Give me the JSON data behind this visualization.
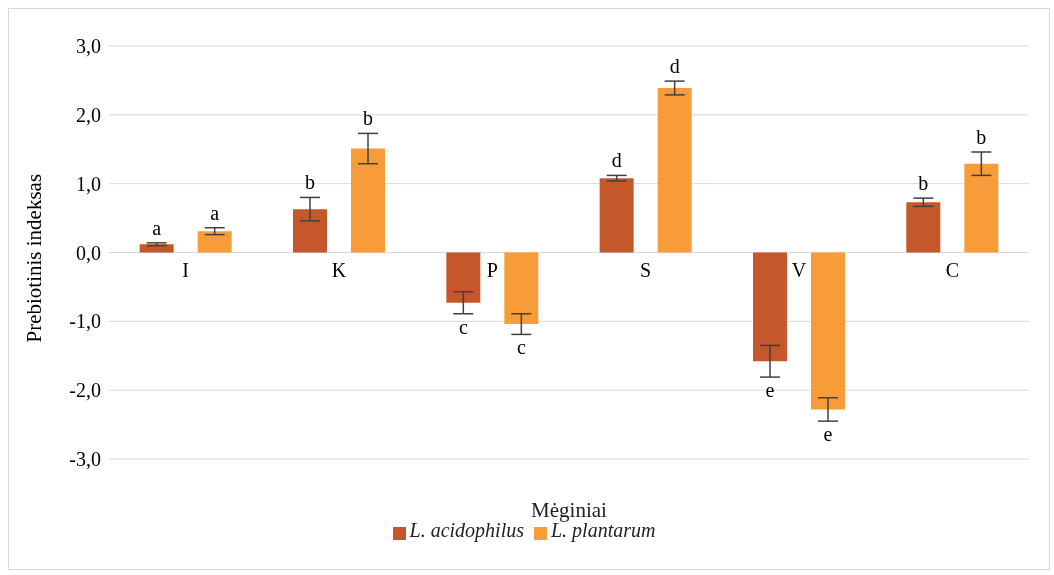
{
  "chart_data": {
    "type": "bar",
    "xlabel": "Mėginiai",
    "ylabel": "Prebiotinis indeksas",
    "categories": [
      "I",
      "K",
      "P",
      "S",
      "V",
      "C"
    ],
    "series": [
      {
        "name": "L. acidophilus",
        "color": "#c5582a",
        "values": [
          0.12,
          0.63,
          -0.73,
          1.08,
          -1.58,
          0.73
        ],
        "errors": [
          0.02,
          0.17,
          0.16,
          0.04,
          0.23,
          0.06
        ],
        "value_labels": [
          "a",
          "b",
          "c",
          "d",
          "e",
          "b"
        ]
      },
      {
        "name": "L. plantarum",
        "color": "#f89c3a",
        "values": [
          0.31,
          1.51,
          -1.04,
          2.39,
          -2.28,
          1.29
        ],
        "errors": [
          0.05,
          0.22,
          0.15,
          0.1,
          0.17,
          0.17
        ],
        "value_labels": [
          "a",
          "b",
          "c",
          "d",
          "e",
          "b"
        ]
      }
    ],
    "ylim": [
      -3,
      3
    ],
    "yticks": [
      {
        "value": -3,
        "label": "-3,0"
      },
      {
        "value": -2,
        "label": "-2,0"
      },
      {
        "value": -1,
        "label": "-1,0"
      },
      {
        "value": 0,
        "label": "0,0"
      },
      {
        "value": 1,
        "label": "1,0"
      },
      {
        "value": 2,
        "label": "2,0"
      },
      {
        "value": 3,
        "label": "3,0"
      }
    ],
    "grid": "y",
    "legend": "bottom"
  }
}
